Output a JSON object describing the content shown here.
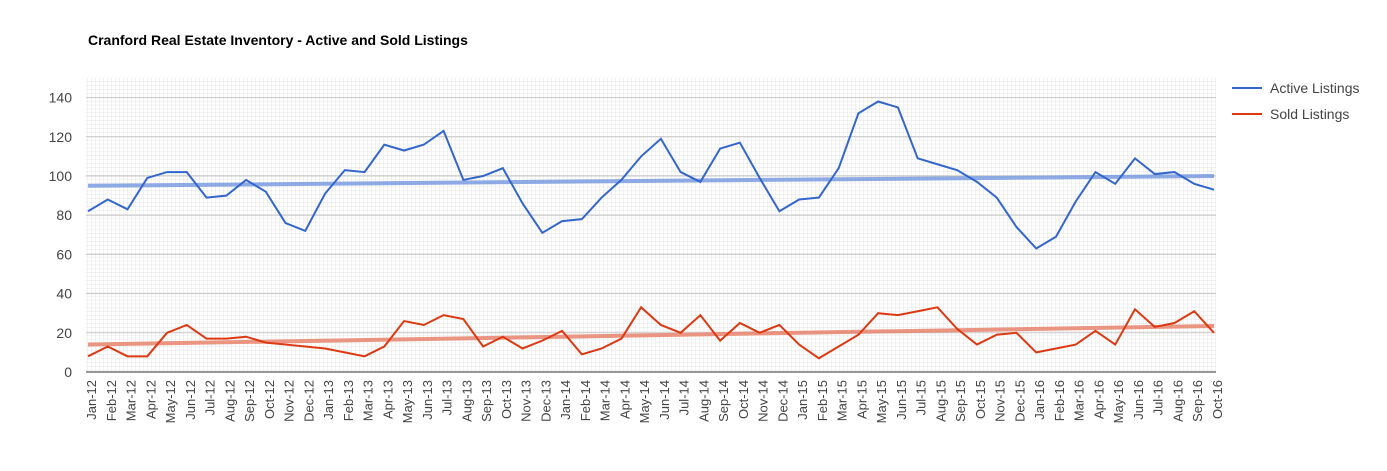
{
  "chart_data": {
    "type": "line",
    "title": "Cranford Real Estate Inventory - Active and Sold Listings",
    "categories": [
      "Jan-12",
      "Feb-12",
      "Mar-12",
      "Apr-12",
      "May-12",
      "Jun-12",
      "Jul-12",
      "Aug-12",
      "Sep-12",
      "Oct-12",
      "Nov-12",
      "Dec-12",
      "Jan-13",
      "Feb-13",
      "Mar-13",
      "Apr-13",
      "May-13",
      "Jun-13",
      "Jul-13",
      "Aug-13",
      "Sep-13",
      "Oct-13",
      "Nov-13",
      "Dec-13",
      "Jan-14",
      "Feb-14",
      "Mar-14",
      "Apr-14",
      "May-14",
      "Jun-14",
      "Jul-14",
      "Aug-14",
      "Sep-14",
      "Oct-14",
      "Nov-14",
      "Dec-14",
      "Jan-15",
      "Feb-15",
      "Mar-15",
      "Apr-15",
      "May-15",
      "Jun-15",
      "Jul-15",
      "Aug-15",
      "Sep-15",
      "Oct-15",
      "Nov-15",
      "Dec-15",
      "Jan-16",
      "Feb-16",
      "Mar-16",
      "Apr-16",
      "May-16",
      "Jun-16",
      "Jul-16",
      "Aug-16",
      "Sep-16",
      "Oct-16"
    ],
    "series": [
      {
        "name": "Active Listings",
        "color": "#3366cc",
        "trend_color": "#7b9ce0",
        "trend": [
          95,
          100
        ],
        "values": [
          82,
          88,
          83,
          99,
          102,
          102,
          89,
          90,
          98,
          92,
          76,
          72,
          91,
          103,
          102,
          116,
          113,
          116,
          123,
          98,
          100,
          104,
          86,
          71,
          77,
          78,
          89,
          98,
          110,
          119,
          102,
          97,
          114,
          117,
          99,
          82,
          88,
          89,
          104,
          132,
          138,
          135,
          109,
          106,
          103,
          97,
          89,
          74,
          63,
          69,
          87,
          102,
          96,
          109,
          101,
          102,
          96,
          93
        ]
      },
      {
        "name": "Sold Listings",
        "color": "#dc3912",
        "trend_color": "#e8846d",
        "trend": [
          14,
          23.5
        ],
        "values": [
          8,
          13,
          8,
          8,
          20,
          24,
          17,
          17,
          18,
          15,
          14,
          13,
          12,
          10,
          8,
          13,
          26,
          24,
          29,
          27,
          13,
          18,
          12,
          16,
          21,
          9,
          12,
          17,
          33,
          24,
          20,
          29,
          16,
          25,
          20,
          24,
          14,
          7,
          13,
          19,
          30,
          29,
          31,
          33,
          22,
          14,
          19,
          20,
          10,
          12,
          14,
          21,
          14,
          32,
          23,
          25,
          31,
          20
        ]
      }
    ],
    "ylim": [
      0,
      150
    ],
    "yticks": [
      0,
      20,
      40,
      60,
      80,
      100,
      120,
      140
    ],
    "grid": true,
    "legend": "right"
  }
}
